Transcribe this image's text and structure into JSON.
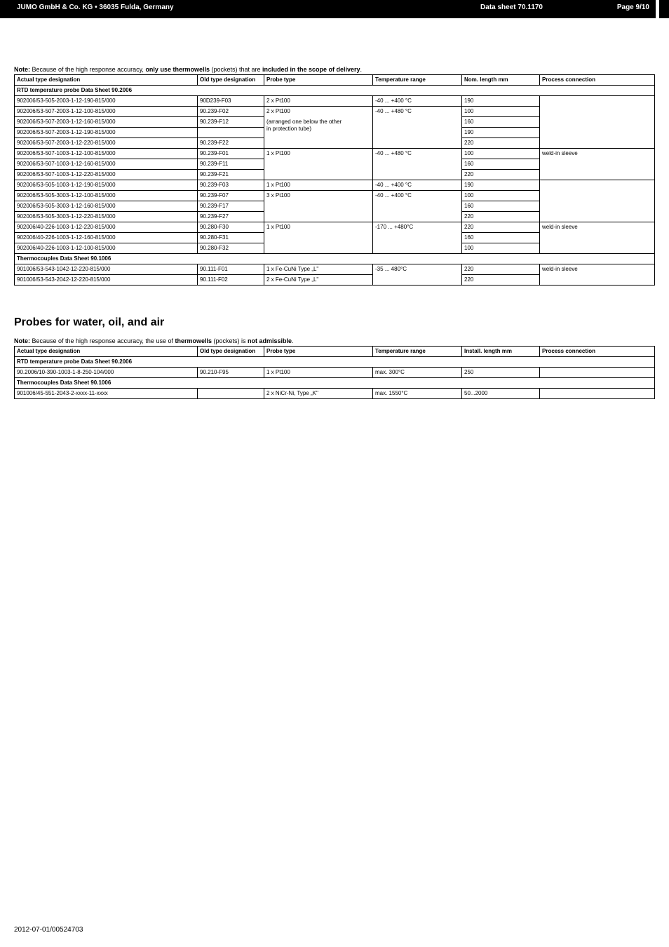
{
  "header": {
    "left": "JUMO GmbH & Co. KG • 36035 Fulda, Germany",
    "mid": "Data sheet 70.1170",
    "right": "Page 9/10",
    "bg": "#000000",
    "fg": "#ffffff"
  },
  "note1_prefix": "Note:",
  "note1_a": " Because of the high response accuracy, ",
  "note1_b": "only use thermowells",
  "note1_c": " (pockets) that are ",
  "note1_d": "included in the scope of delivery",
  "note1_e": ".",
  "table1": {
    "columns": [
      "Actual type designation",
      "Old type designation",
      "Probe type",
      "Temperature range",
      "Nom. length mm",
      "Process connection"
    ],
    "section1": "RTD temperature probe Data Sheet 90.2006",
    "rows1": [
      [
        "902006/53-505-2003-1-12-190-815/000",
        "90D239-F03",
        "2 x Pt100",
        "-40 ... +400 °C",
        "190",
        ""
      ],
      [
        "902006/53-507-2003-1-12-100-815/000",
        "90.239-F02",
        "2 x Pt100",
        "-40 ... +480 °C",
        "100",
        ""
      ],
      [
        "902006/53-507-2003-1-12-160-815/000",
        "90.239-F12",
        "(arranged one",
        "",
        "160",
        ""
      ],
      [
        "902006/53-507-2003-1-12-190-815/000",
        "",
        "below the other in protection tube)",
        "",
        "190",
        ""
      ],
      [
        "902006/53-507-2003-1-12-220-815/000",
        "90.239-F22",
        "",
        "",
        "220",
        ""
      ],
      [
        "902006/53-507-1003-1-12-100-815/000",
        "90.239-F01",
        "1 x Pt100",
        "-40 ... +480 °C",
        "100",
        "weld-in sleeve"
      ],
      [
        "902006/53-507-1003-1-12-160-815/000",
        "90.239-F11",
        "",
        "",
        "160",
        ""
      ],
      [
        "902006/53-507-1003-1-12-220-815/000",
        "90.239-F21",
        "",
        "",
        "220",
        ""
      ],
      [
        "902006/53-505-1003-1-12-190-815/000",
        "90.239-F03",
        "1 x Pt100",
        "-40 ... +400 °C",
        "190",
        ""
      ],
      [
        "902006/53-505-3003-1-12-100-815/000",
        "90.239-F07",
        "3 x Pt100",
        "-40 ... +400 °C",
        "100",
        ""
      ],
      [
        "902006/53-505-3003-1-12-160-815/000",
        "90.239-F17",
        "",
        "",
        "160",
        ""
      ],
      [
        "902006/53-505-3003-1-12-220-815/000",
        "90.239-F27",
        "",
        "",
        "220",
        ""
      ],
      [
        "902006/40-226-1003-1-12-220-815/000",
        "90.280-F30",
        "1 x Pt100",
        "-170 ... +480°C",
        "220",
        "weld-in sleeve"
      ],
      [
        "902006/40-226-1003-1-12-160-815/000",
        "90.280-F31",
        "",
        "",
        "160",
        ""
      ],
      [
        "902006/40-226-1003-1-12-100-815/000",
        "90.280-F32",
        "",
        "",
        "100",
        ""
      ]
    ],
    "probe_merge_text_line1": "(arranged one below the other",
    "probe_merge_text_line2": "in protection tube)",
    "section2": "Thermocouples Data Sheet  90.1006",
    "rows2": [
      [
        "901006/53-543-1042-12-220-815/000",
        "90.111-F01",
        "1 x Fe-CuNi Type „L\"",
        "-35 ... 480°C",
        "220",
        "weld-in sleeve"
      ],
      [
        "901006/53-543-2042-12-220-815/000",
        "90.111-F02",
        "2 x Fe-CuNi Type „L\"",
        "",
        "220",
        ""
      ]
    ]
  },
  "section_title": "Probes for water, oil, and air",
  "note2_prefix": "Note:",
  "note2_a": " Because of the high response accuracy, the use of ",
  "note2_b": "thermowells",
  "note2_c": " (pockets) is ",
  "note2_d": "not admissible",
  "note2_e": ".",
  "table2": {
    "columns": [
      "Actual type designation",
      "Old type designation",
      "Probe type",
      "Temperature range",
      "Install. length mm",
      "Process connection"
    ],
    "section1": "RTD temperature probe Data Sheet 90.2006",
    "row1": [
      "90.2006/10-390-1003-1-8-250-104/000",
      "90.210-F95",
      "1 x Pt100",
      "max. 300°C",
      "250",
      ""
    ],
    "section2": "Thermocouples Data Sheet  90.1006",
    "row2": [
      "901006/45-551-2043-2-xxxx-11-xxxx",
      "",
      "2 x NiCr-Ni, Type „K\"",
      "max. 1550°C",
      "50...2000",
      ""
    ]
  },
  "footer": "2012-07-01/00524703"
}
